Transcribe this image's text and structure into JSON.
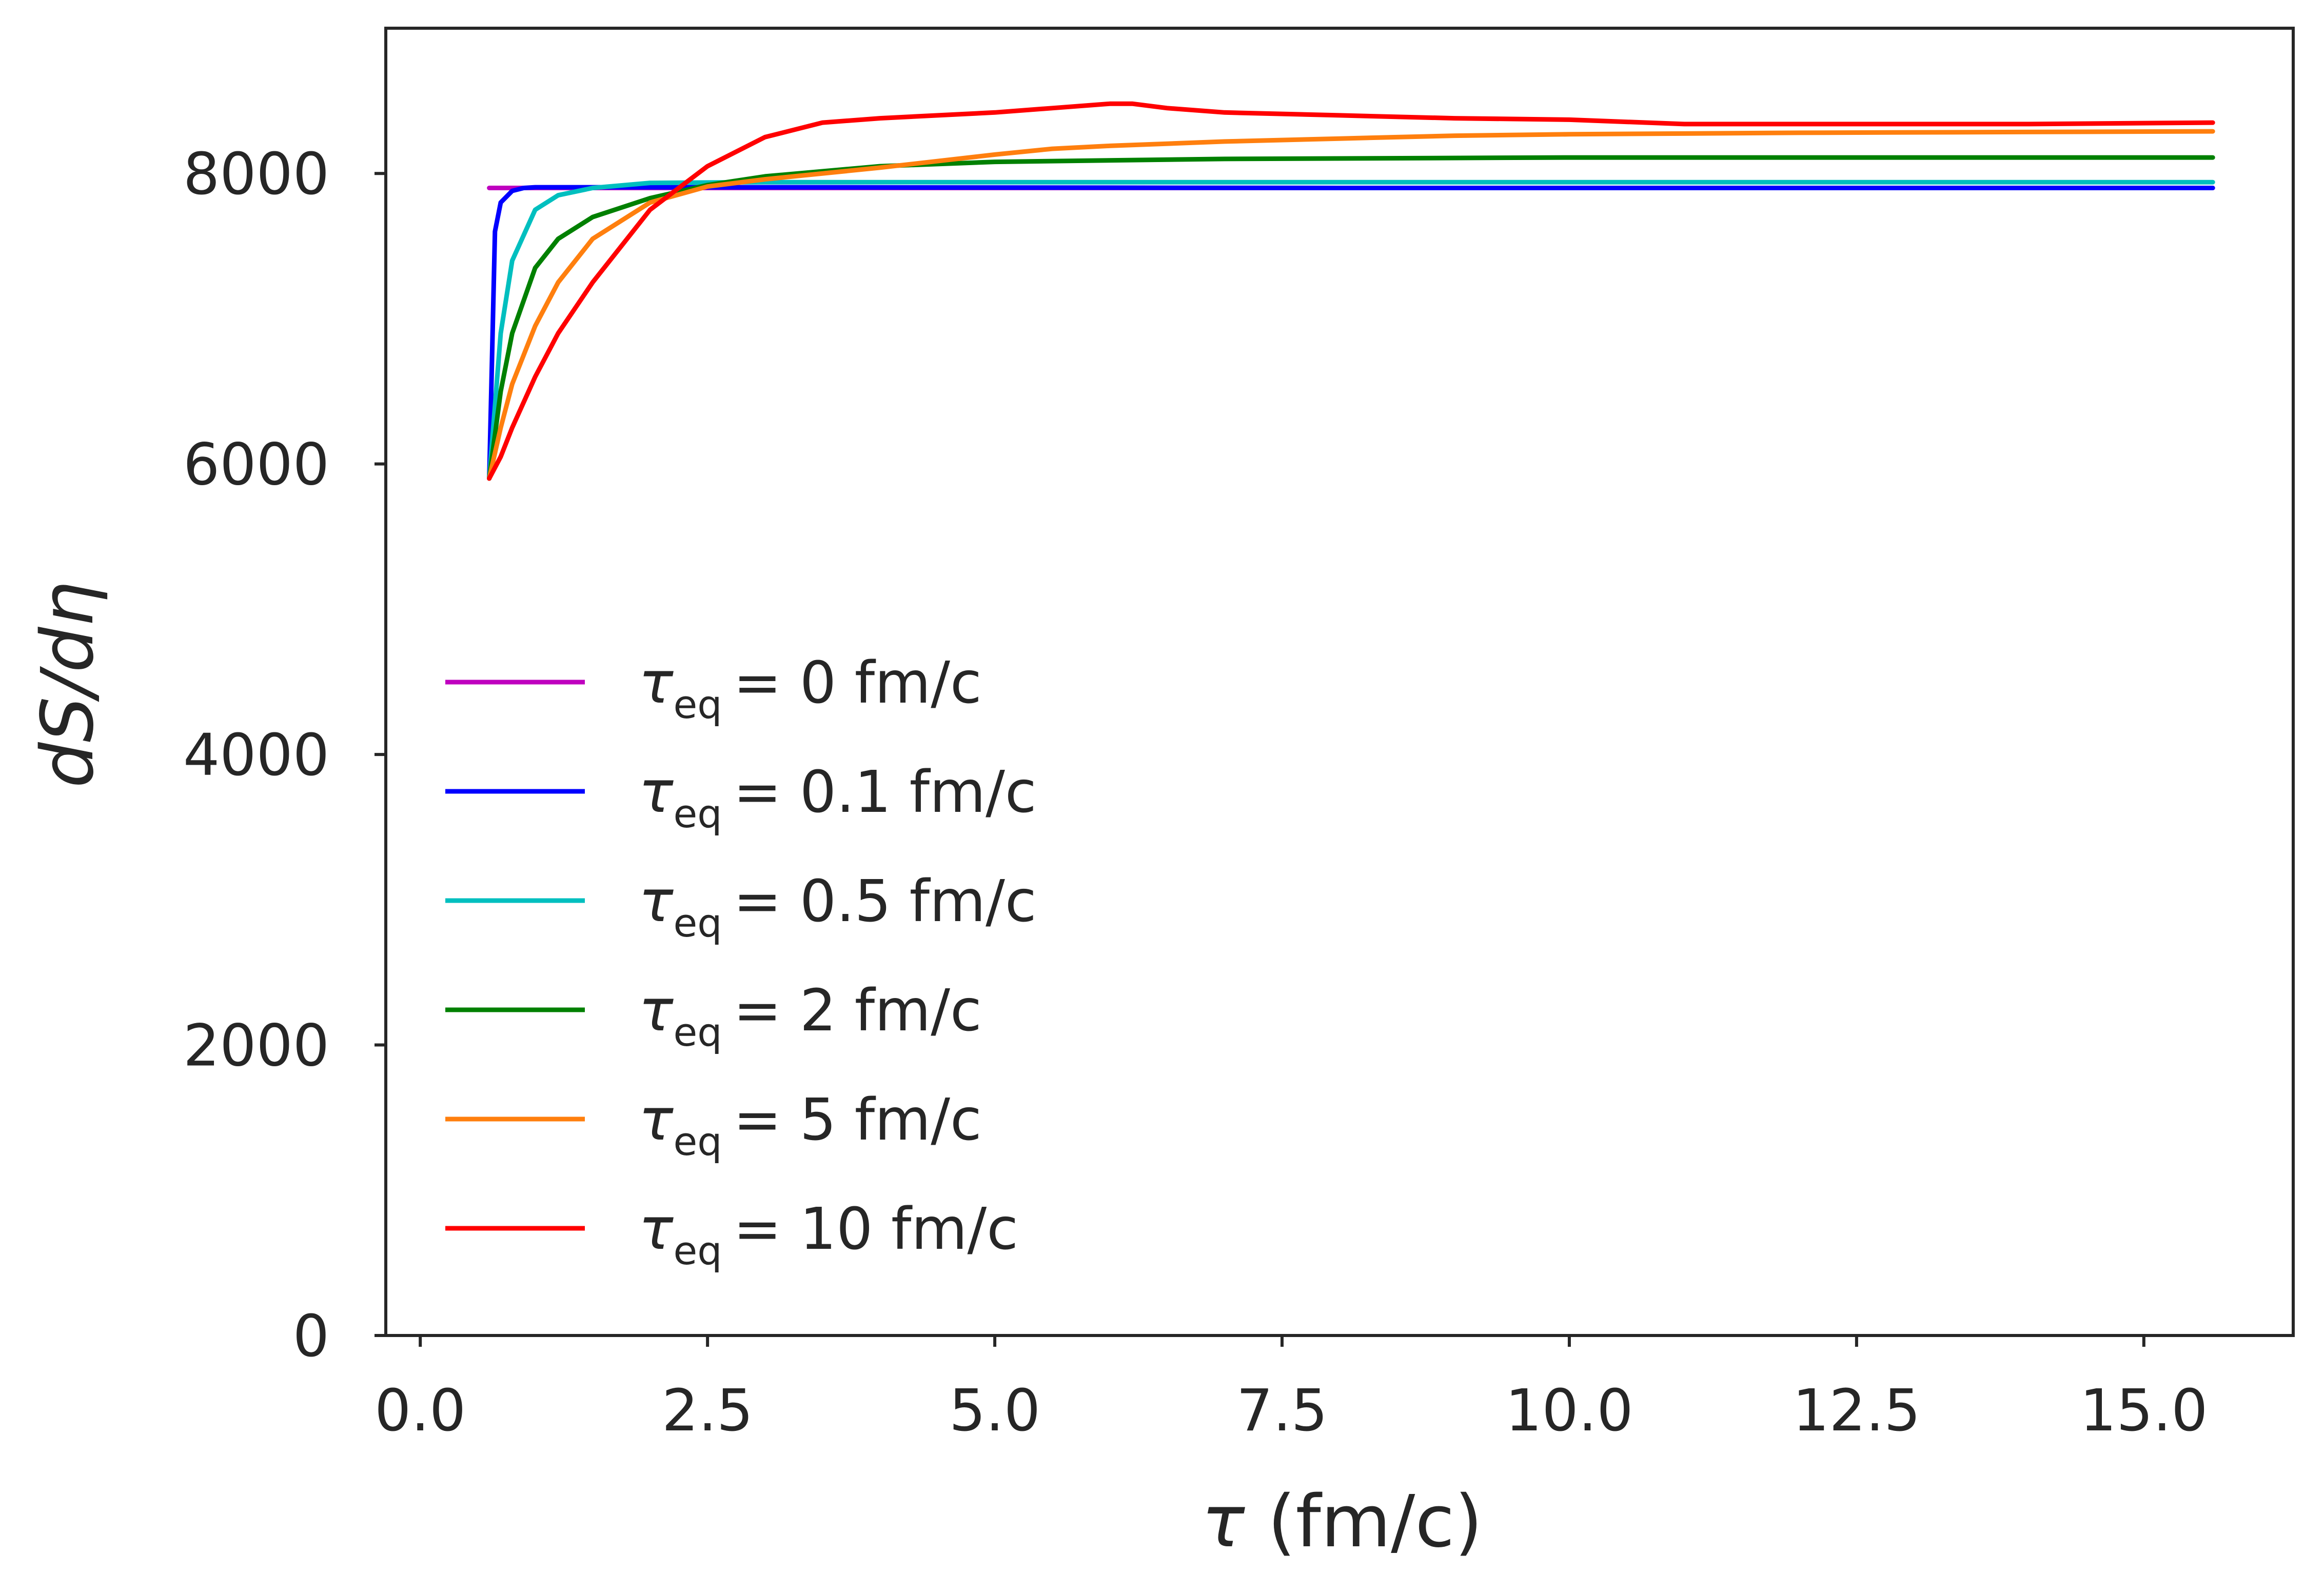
{
  "chart_data": {
    "type": "line",
    "xlabel": {
      "symbol": "τ",
      "rest": " (fm/c)"
    },
    "ylabel": "dS/dη",
    "xlim": [
      -0.3,
      16.3
    ],
    "ylim": [
      0,
      9000
    ],
    "x_ticks": [
      0.0,
      2.5,
      5.0,
      7.5,
      10.0,
      12.5,
      15.0
    ],
    "x_tick_labels": [
      "0.0",
      "2.5",
      "5.0",
      "7.5",
      "10.0",
      "12.5",
      "15.0"
    ],
    "y_ticks": [
      0,
      2000,
      4000,
      6000,
      8000
    ],
    "y_tick_labels": [
      "0",
      "2000",
      "4000",
      "6000",
      "8000"
    ],
    "grid": false,
    "legend_position": "center-left",
    "legend_symbol": "τ",
    "legend_subscript": "eq",
    "series": [
      {
        "name": "τ_eq = 0 fm/c",
        "value_text": "= 0 fm/c",
        "color": "#bf00bf",
        "x": [
          0.6,
          1.0,
          2.0,
          5.0,
          10.0,
          15.6
        ],
        "y": [
          7900,
          7900,
          7900,
          7900,
          7900,
          7900
        ]
      },
      {
        "name": "τ_eq = 0.1 fm/c",
        "value_text": "= 0.1 fm/c",
        "color": "#0000ff",
        "x": [
          0.6,
          0.65,
          0.7,
          0.8,
          0.9,
          1.0,
          1.5,
          3.0,
          8.0,
          15.6
        ],
        "y": [
          5900,
          7600,
          7800,
          7880,
          7900,
          7905,
          7905,
          7905,
          7900,
          7900
        ]
      },
      {
        "name": "τ_eq = 0.5 fm/c",
        "value_text": "= 0.5 fm/c",
        "color": "#00bfbf",
        "x": [
          0.6,
          0.7,
          0.8,
          1.0,
          1.2,
          1.5,
          2.0,
          3.0,
          5.0,
          10.0,
          15.6
        ],
        "y": [
          5900,
          6900,
          7400,
          7750,
          7850,
          7900,
          7935,
          7940,
          7940,
          7940,
          7940
        ]
      },
      {
        "name": "τ_eq = 2 fm/c",
        "value_text": "= 2 fm/c",
        "color": "#008000",
        "x": [
          0.6,
          0.7,
          0.8,
          1.0,
          1.2,
          1.5,
          2.0,
          2.5,
          3.0,
          4.0,
          5.0,
          7.0,
          10.0,
          15.6
        ],
        "y": [
          5900,
          6500,
          6900,
          7350,
          7550,
          7700,
          7830,
          7920,
          7980,
          8050,
          8080,
          8100,
          8110,
          8110
        ]
      },
      {
        "name": "τ_eq = 5 fm/c",
        "value_text": "= 5 fm/c",
        "color": "#ff7f0e",
        "x": [
          0.6,
          0.7,
          0.8,
          1.0,
          1.2,
          1.5,
          2.0,
          2.5,
          3.0,
          4.0,
          5.0,
          5.5,
          6.0,
          7.0,
          8.0,
          9.0,
          10.0,
          12.0,
          15.6
        ],
        "y": [
          5900,
          6250,
          6550,
          6950,
          7250,
          7550,
          7800,
          7910,
          7960,
          8040,
          8130,
          8170,
          8190,
          8220,
          8240,
          8260,
          8270,
          8280,
          8290
        ]
      },
      {
        "name": "τ_eq = 10 fm/c",
        "value_text": "= 10 fm/c",
        "color": "#ff0000",
        "x": [
          0.6,
          0.7,
          0.8,
          1.0,
          1.2,
          1.5,
          2.0,
          2.5,
          3.0,
          3.5,
          4.0,
          5.0,
          5.5,
          6.0,
          6.2,
          6.5,
          7.0,
          8.0,
          9.0,
          10.0,
          11.0,
          12.0,
          13.0,
          14.0,
          15.6
        ],
        "y": [
          5900,
          6050,
          6250,
          6600,
          6900,
          7250,
          7750,
          8050,
          8250,
          8350,
          8380,
          8420,
          8450,
          8480,
          8480,
          8450,
          8420,
          8400,
          8380,
          8370,
          8340,
          8340,
          8340,
          8340,
          8350
        ]
      }
    ]
  }
}
